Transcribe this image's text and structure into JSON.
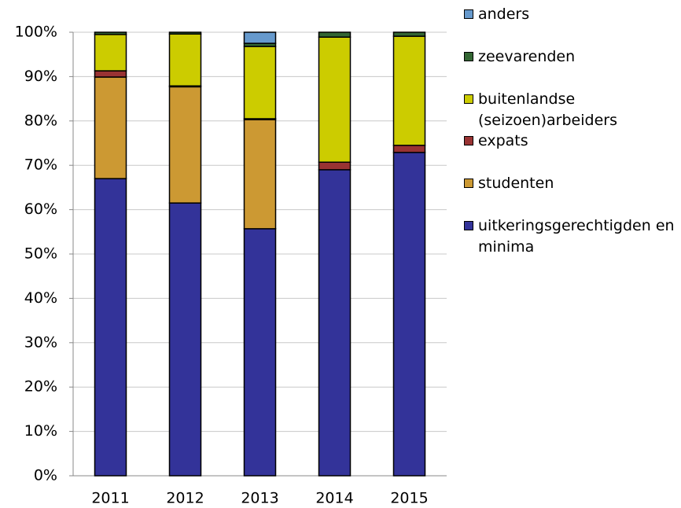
{
  "chart_data": {
    "type": "stacked_bar",
    "categories": [
      "2011",
      "2012",
      "2013",
      "2014",
      "2015"
    ],
    "series": [
      {
        "name": "uitkeringsgerechtigden en minima",
        "color": "#333399",
        "values": [
          67.0,
          61.5,
          55.7,
          69.0,
          72.9
        ]
      },
      {
        "name": "studenten",
        "color": "#cc9933",
        "values": [
          22.9,
          26.2,
          24.6,
          0,
          0
        ]
      },
      {
        "name": "expats",
        "color": "#993333",
        "values": [
          1.4,
          0.2,
          0.2,
          1.7,
          1.6
        ]
      },
      {
        "name": "buitenlandse (seizoen)arbeiders",
        "color": "#cccc00",
        "values": [
          8.2,
          11.7,
          16.3,
          28.2,
          24.6
        ]
      },
      {
        "name": "zeevarenden",
        "color": "#336633",
        "values": [
          0.5,
          0.4,
          0.7,
          1.1,
          0.9
        ]
      },
      {
        "name": "anders",
        "color": "#6699cc",
        "values": [
          0,
          0,
          2.5,
          0,
          0
        ]
      }
    ],
    "ylim": [
      0,
      100
    ],
    "yticks": [
      {
        "value": 0,
        "label": "0%"
      },
      {
        "value": 10,
        "label": "10%"
      },
      {
        "value": 20,
        "label": "20%"
      },
      {
        "value": 30,
        "label": "30%"
      },
      {
        "value": 40,
        "label": "40%"
      },
      {
        "value": 50,
        "label": "50%"
      },
      {
        "value": 60,
        "label": "60%"
      },
      {
        "value": 70,
        "label": "70%"
      },
      {
        "value": 80,
        "label": "80%"
      },
      {
        "value": 90,
        "label": "90%"
      },
      {
        "value": 100,
        "label": "100%"
      }
    ],
    "grid": true
  }
}
